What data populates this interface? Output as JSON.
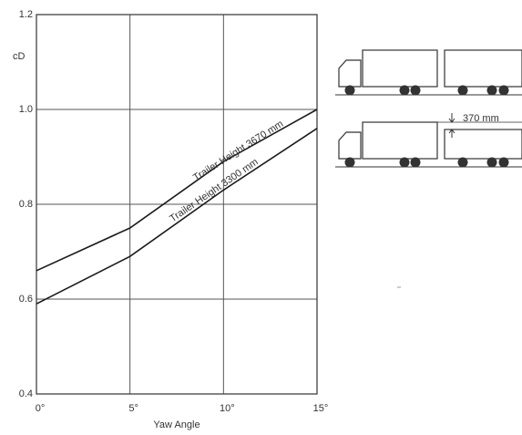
{
  "chart_data": {
    "type": "line",
    "xlabel": "Yaw Angle",
    "ylabel": "cD",
    "x": [
      0,
      5,
      10,
      15
    ],
    "series": [
      {
        "name": "Trailer Height 3670 mm",
        "color": "#1a1a1a",
        "values": [
          0.66,
          0.75,
          0.89,
          1.0
        ]
      },
      {
        "name": "Trailer Height 3300 mm",
        "color": "#1a1a1a",
        "values": [
          0.59,
          0.69,
          0.83,
          0.96
        ]
      }
    ],
    "xlim": [
      0,
      15
    ],
    "xticks": [
      {
        "value": 0,
        "label": "0°"
      },
      {
        "value": 5,
        "label": "5°"
      },
      {
        "value": 10,
        "label": "10°"
      },
      {
        "value": 15,
        "label": "15°"
      }
    ],
    "ylim": [
      0.4,
      1.2
    ],
    "yticks": [
      0.4,
      0.6,
      0.8,
      {
        "value": 1,
        "label": "1.0"
      },
      1.2
    ],
    "grid": true,
    "annotation": "370 mm"
  }
}
